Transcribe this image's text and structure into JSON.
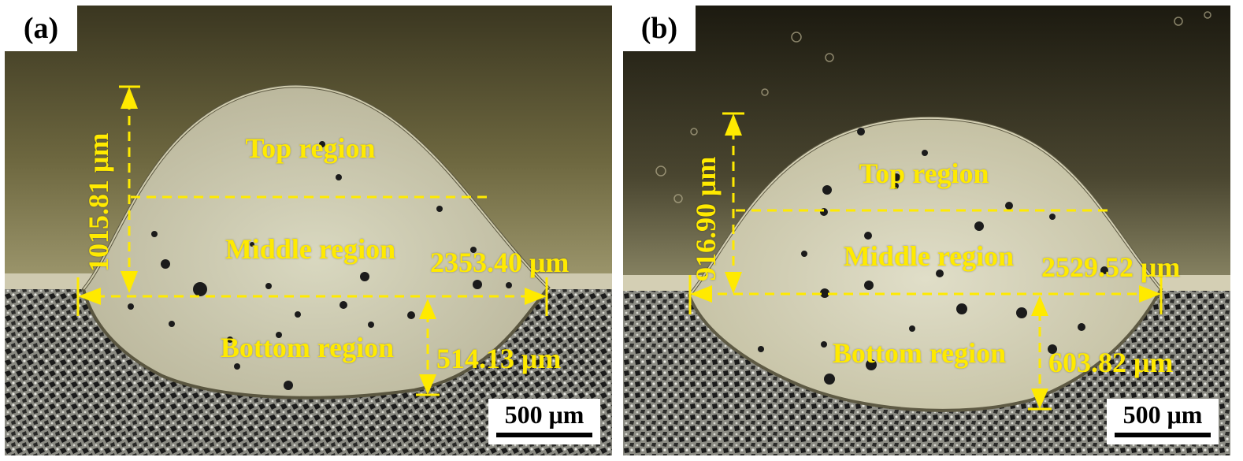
{
  "colors": {
    "annotation": "#ffea00",
    "label_bg": "#ffffff",
    "label_text": "#000000"
  },
  "panels": [
    {
      "tag": "(a)",
      "regions": {
        "top": "Top region",
        "middle": "Middle region",
        "bottom": "Bottom region"
      },
      "measurements": {
        "height": "1015.81 μm",
        "width": "2353.40 μm",
        "depth": "514.13 μm"
      },
      "scale_bar": "500 μm"
    },
    {
      "tag": "(b)",
      "regions": {
        "top": "Top region",
        "middle": "Middle region",
        "bottom": "Bottom region"
      },
      "measurements": {
        "height": "916.90 μm",
        "width": "2529.52 μm",
        "depth": "603.82 μm"
      },
      "scale_bar": "500 μm"
    }
  ]
}
